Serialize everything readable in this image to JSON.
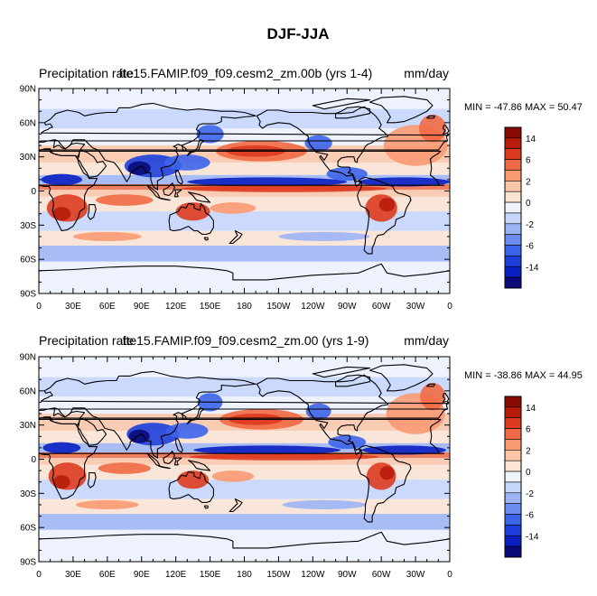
{
  "figure_title": "DJF-JJA",
  "chart_data": [
    {
      "type": "heatmap",
      "left_title": "Precipitation rate",
      "center_title": "fte15.FAMIP.f09_f09.cesm2_zm.00b (yrs 1-4)",
      "units": "mm/day",
      "stats": "MIN = -47.86 MAX =  50.47",
      "min": -47.86,
      "max": 50.47,
      "lat_ticks": [
        "90N",
        "60N",
        "30N",
        "0",
        "30S",
        "60S",
        "90S"
      ],
      "lon_ticks": [
        "0",
        "30E",
        "60E",
        "90E",
        "120E",
        "150E",
        "180",
        "150W",
        "120W",
        "90W",
        "60W",
        "30W",
        "0"
      ],
      "xlim": [
        0,
        360
      ],
      "ylim": [
        -90,
        90
      ],
      "colorbar_labels": [
        "14",
        "6",
        "2",
        "0",
        "-2",
        "-6",
        "-14"
      ],
      "colorbar_levels": [
        -20,
        -14,
        -10,
        -6,
        -4,
        -2,
        -1,
        0,
        1,
        2,
        4,
        6,
        10,
        14,
        20
      ]
    },
    {
      "type": "heatmap",
      "left_title": "Precipitation rate",
      "center_title": "fte15.FAMIP.f09_f09.cesm2_zm.00 (yrs 1-9)",
      "units": "mm/day",
      "stats": "MIN = -38.86 MAX =  44.95",
      "min": -38.86,
      "max": 44.95,
      "lat_ticks": [
        "90N",
        "60N",
        "30N",
        "0",
        "30S",
        "60S",
        "90S"
      ],
      "lon_ticks": [
        "0",
        "30E",
        "60E",
        "90E",
        "120E",
        "150E",
        "180",
        "150W",
        "120W",
        "90W",
        "60W",
        "30W",
        "0"
      ],
      "xlim": [
        0,
        360
      ],
      "ylim": [
        -90,
        90
      ],
      "colorbar_labels": [
        "14",
        "6",
        "2",
        "0",
        "-2",
        "-6",
        "-14"
      ],
      "colorbar_levels": [
        -20,
        -14,
        -10,
        -6,
        -4,
        -2,
        -1,
        0,
        1,
        2,
        4,
        6,
        10,
        14,
        20
      ]
    }
  ],
  "colors": {
    "palette": [
      "#0a0a78",
      "#0a1fc0",
      "#1c3fdc",
      "#3c64ea",
      "#6b8cf0",
      "#9cb4f5",
      "#c6d6fb",
      "#eef2fb",
      "#fde3d2",
      "#fcc5a6",
      "#f99a72",
      "#ef6a44",
      "#dd3b1f",
      "#b81d0c",
      "#8a0a05"
    ],
    "background": "#ffffff",
    "coast": "#000000"
  }
}
